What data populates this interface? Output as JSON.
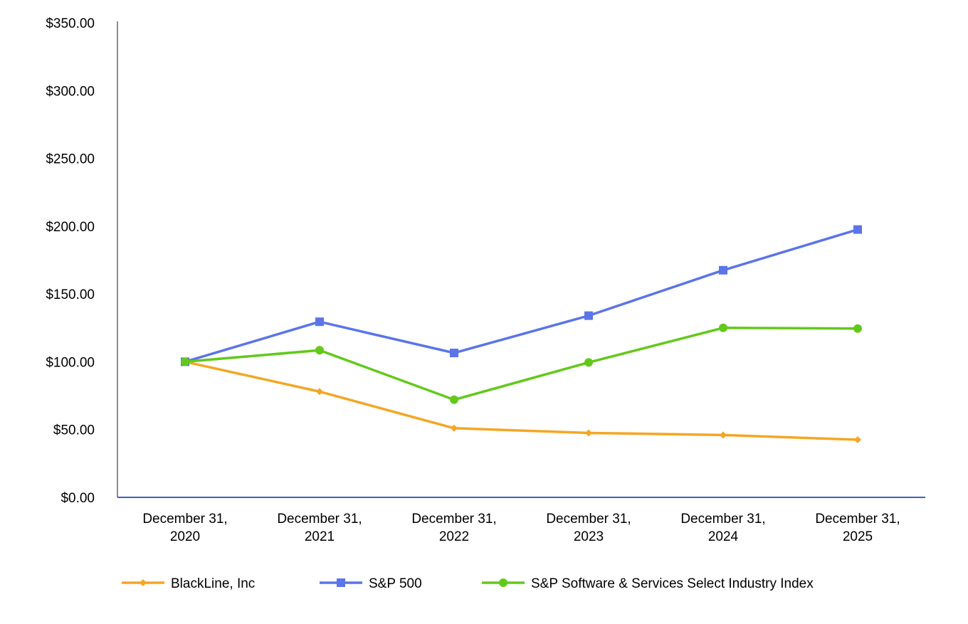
{
  "colors": {
    "y_axis": "#8c8c8c",
    "x_axis": "#3a5fcd",
    "text": "#000000"
  },
  "chart_data": {
    "type": "line",
    "x": [
      [
        "December 31,",
        "2020"
      ],
      [
        "December 31,",
        "2021"
      ],
      [
        "December 31,",
        "2022"
      ],
      [
        "December 31,",
        "2023"
      ],
      [
        "December 31,",
        "2024"
      ],
      [
        "December 31,",
        "2025"
      ]
    ],
    "ylim": [
      0,
      350
    ],
    "yticks": [
      0,
      50,
      100,
      150,
      200,
      250,
      300,
      350
    ],
    "ytick_labels": [
      "$0.00",
      "$50.00",
      "$100.00",
      "$150.00",
      "$200.00",
      "$250.00",
      "$300.00",
      "$350.00"
    ],
    "grid": false,
    "legend_position": "bottom",
    "series": [
      {
        "name": "BlackLine, Inc",
        "color": "#f5a623",
        "marker": "diamond",
        "values": [
          100.0,
          78.0,
          51.0,
          47.5,
          46.0,
          42.5
        ]
      },
      {
        "name": "S&P 500",
        "color": "#5b74e8",
        "marker": "square",
        "values": [
          100.0,
          129.5,
          106.5,
          134.0,
          167.5,
          197.5
        ]
      },
      {
        "name": "S&P Software & Services Select Industry Index",
        "color": "#62c91a",
        "marker": "circle",
        "values": [
          100.0,
          108.5,
          72.0,
          99.5,
          125.0,
          124.5
        ]
      }
    ]
  }
}
